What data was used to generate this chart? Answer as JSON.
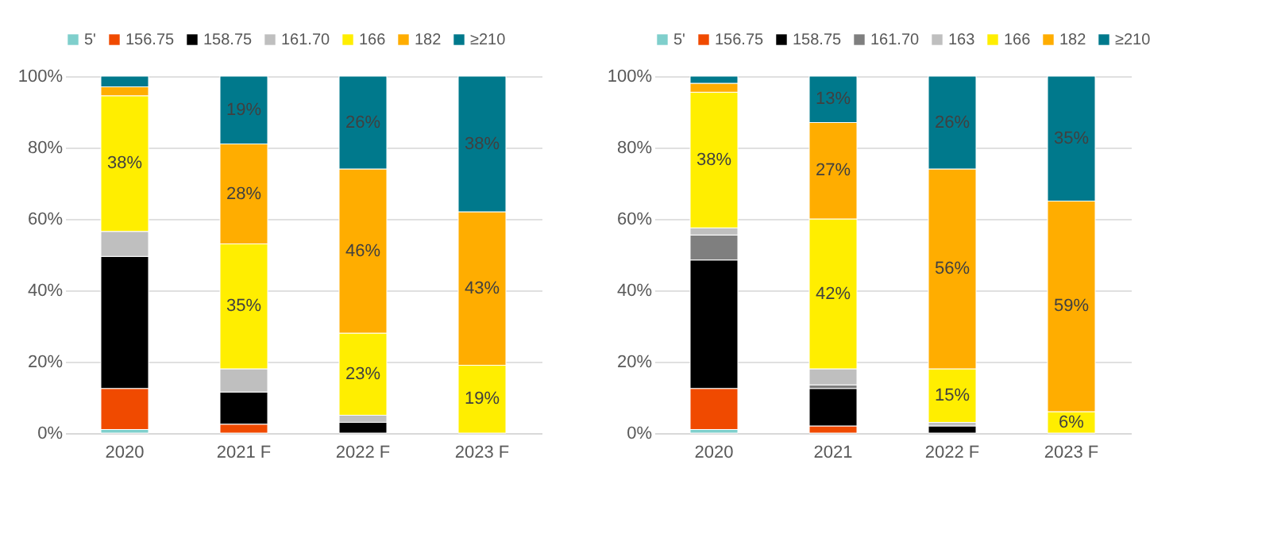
{
  "chart_data": [
    {
      "type": "bar",
      "stacked": true,
      "categories": [
        "2020",
        "2021 F",
        "2022 F",
        "2023 F"
      ],
      "ylim": [
        0,
        100
      ],
      "yticks": [
        {
          "value": 0,
          "label": "0%"
        },
        {
          "value": 20,
          "label": "20%"
        },
        {
          "value": 40,
          "label": "40%"
        },
        {
          "value": 60,
          "label": "60%"
        },
        {
          "value": 80,
          "label": "80%"
        },
        {
          "value": 100,
          "label": "100%"
        }
      ],
      "grid": "y",
      "legend": "top",
      "series": [
        {
          "name": "5'",
          "color": "#7fcfcc",
          "values": [
            1,
            null,
            null,
            null
          ]
        },
        {
          "name": "156.75",
          "color": "#f04a00",
          "values": [
            11.5,
            2.5,
            null,
            null
          ]
        },
        {
          "name": "158.75",
          "color": "#000000",
          "values": [
            37,
            9,
            3,
            null
          ]
        },
        {
          "name": "161.70",
          "color": "#bfbfbf",
          "values": [
            7,
            6.5,
            2,
            null
          ]
        },
        {
          "name": "166",
          "color": "#ffee00",
          "values": [
            38,
            35,
            23,
            19
          ],
          "value_labels": [
            "38%",
            "35%",
            "23%",
            "19%"
          ]
        },
        {
          "name": "182",
          "color": "#ffad00",
          "values": [
            2.5,
            28,
            46,
            43
          ],
          "value_labels": [
            null,
            "28%",
            "46%",
            "43%"
          ]
        },
        {
          "name": "≥210",
          "color": "#00798c",
          "values": [
            3,
            19,
            26,
            38
          ],
          "value_labels": [
            null,
            "19%",
            "26%",
            "38%"
          ]
        }
      ]
    },
    {
      "type": "bar",
      "stacked": true,
      "categories": [
        "2020",
        "2021",
        "2022 F",
        "2023 F"
      ],
      "ylim": [
        0,
        100
      ],
      "yticks": [
        {
          "value": 0,
          "label": "0%"
        },
        {
          "value": 20,
          "label": "20%"
        },
        {
          "value": 40,
          "label": "40%"
        },
        {
          "value": 60,
          "label": "60%"
        },
        {
          "value": 80,
          "label": "80%"
        },
        {
          "value": 100,
          "label": "100%"
        }
      ],
      "grid": "y",
      "legend": "top",
      "series": [
        {
          "name": "5'",
          "color": "#7fcfcc",
          "values": [
            1,
            null,
            null,
            null
          ]
        },
        {
          "name": "156.75",
          "color": "#f04a00",
          "values": [
            11.5,
            2,
            null,
            null
          ]
        },
        {
          "name": "158.75",
          "color": "#000000",
          "values": [
            36,
            10.5,
            2,
            null
          ]
        },
        {
          "name": "161.70",
          "color": "#7f7f7f",
          "values": [
            7,
            1,
            null,
            null
          ]
        },
        {
          "name": "163",
          "color": "#bfbfbf",
          "values": [
            2,
            4.5,
            1,
            null
          ]
        },
        {
          "name": "166",
          "color": "#ffee00",
          "values": [
            38,
            42,
            15,
            6
          ],
          "value_labels": [
            "38%",
            "42%",
            "15%",
            "6%"
          ]
        },
        {
          "name": "182",
          "color": "#ffad00",
          "values": [
            2.5,
            27,
            56,
            59
          ],
          "value_labels": [
            null,
            "27%",
            "56%",
            "59%"
          ]
        },
        {
          "name": "≥210",
          "color": "#00798c",
          "values": [
            2,
            13,
            26,
            35
          ],
          "value_labels": [
            null,
            "13%",
            "26%",
            "35%"
          ]
        }
      ]
    }
  ]
}
